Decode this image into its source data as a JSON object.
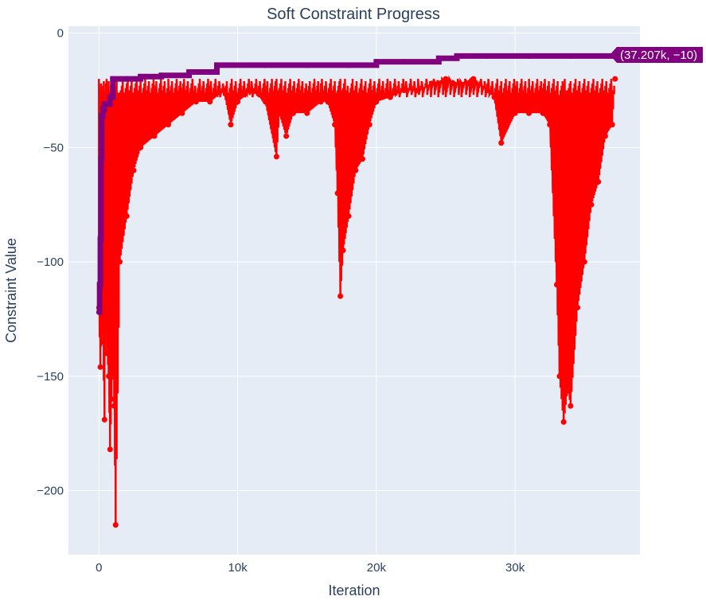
{
  "chart_data": {
    "type": "line",
    "title": "Soft Constraint Progress",
    "xlabel": "Iteration",
    "ylabel": "Constraint Value",
    "xlim": [
      -2200,
      39000
    ],
    "ylim": [
      -228,
      3
    ],
    "x_ticks": [
      0,
      10000,
      20000,
      30000
    ],
    "x_tick_labels": [
      "0",
      "10k",
      "20k",
      "30k"
    ],
    "y_ticks": [
      0,
      -50,
      -100,
      -150,
      -200
    ],
    "y_tick_labels": [
      "0",
      "−50",
      "−100",
      "−150",
      "−200"
    ],
    "grid": true,
    "legend": "none",
    "colors": {
      "plot_bg": "#e5ecf6",
      "grid": "#ffffff",
      "text": "#2a3f5f",
      "best": "#800080",
      "current": "#ff0000"
    },
    "series": [
      {
        "role": "best",
        "color": "#800080",
        "x": [
          0,
          50,
          100,
          150,
          200,
          300,
          400,
          500,
          600,
          700,
          800,
          1000,
          2000,
          3000,
          4500,
          6500,
          8500,
          12000,
          15000,
          18000,
          20000,
          22000,
          24500,
          25800,
          28000,
          31000,
          34000,
          37207
        ],
        "y": [
          -122,
          -110,
          -90,
          -55,
          -36,
          -33,
          -31,
          -31,
          -31,
          -31,
          -28,
          -20,
          -20,
          -19,
          -18.5,
          -17,
          -14,
          -14,
          -14,
          -14,
          -12.5,
          -12.5,
          -11,
          -10,
          -10,
          -10,
          -10,
          -10
        ]
      },
      {
        "role": "current",
        "color": "#ff0000",
        "x": [
          0,
          100,
          200,
          300,
          400,
          500,
          600,
          700,
          800,
          900,
          1000,
          1100,
          1200,
          1500,
          2000,
          2500,
          3000,
          4000,
          5000,
          6000,
          7000,
          8000,
          9000,
          9500,
          10000,
          11000,
          12000,
          12800,
          13000,
          13500,
          14000,
          15000,
          16000,
          16500,
          17000,
          17200,
          17400,
          17600,
          18000,
          18500,
          19000,
          19500,
          20000,
          21000,
          22000,
          23000,
          24000,
          25000,
          26000,
          27000,
          28000,
          28500,
          29000,
          30000,
          31000,
          32000,
          32500,
          33000,
          33200,
          33500,
          33800,
          34000,
          34500,
          35000,
          35500,
          36000,
          36500,
          37000,
          37207
        ],
        "y": [
          -120,
          -146,
          -128,
          -135,
          -169,
          -110,
          -140,
          -150,
          -182,
          -160,
          -140,
          -163,
          -215,
          -100,
          -80,
          -60,
          -50,
          -45,
          -40,
          -35,
          -30,
          -30,
          -25,
          -40,
          -30,
          -25,
          -30,
          -54,
          -35,
          -45,
          -35,
          -35,
          -30,
          -30,
          -40,
          -70,
          -115,
          -95,
          -80,
          -60,
          -55,
          -40,
          -30,
          -28,
          -25,
          -25,
          -22,
          -20,
          -22,
          -20,
          -25,
          -28,
          -48,
          -35,
          -35,
          -35,
          -40,
          -110,
          -150,
          -170,
          -155,
          -163,
          -120,
          -100,
          -75,
          -65,
          -45,
          -40,
          -20
        ]
      }
    ],
    "hover_label": "(37.207k, −10)"
  }
}
